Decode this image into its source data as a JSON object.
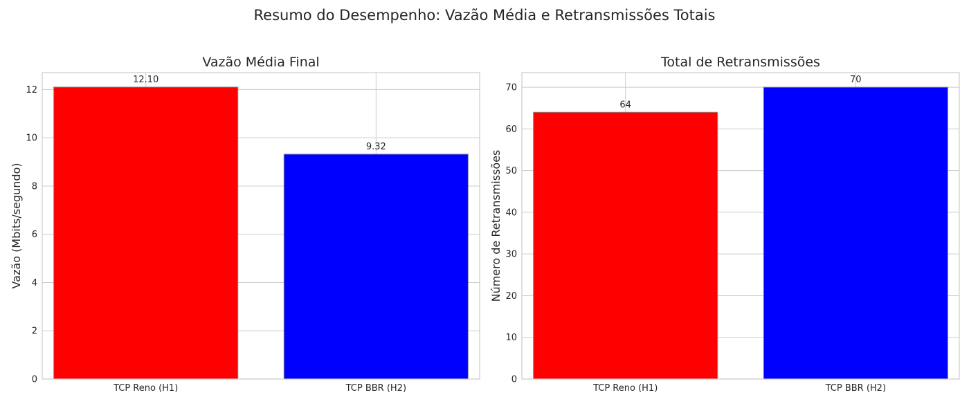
{
  "figure": {
    "title": "Resumo do Desempenho: Vazão Média e Retransmissões Totais"
  },
  "chart_data": [
    {
      "type": "bar",
      "title": "Vazão Média Final",
      "xlabel": "",
      "ylabel": "Vazão (Mbits/segundo)",
      "categories": [
        "TCP Reno (H1)",
        "TCP BBR (H2)"
      ],
      "values": [
        12.1,
        9.32
      ],
      "value_labels": [
        "12.10",
        "9.32"
      ],
      "colors": [
        "#ff0000",
        "#0000ff"
      ],
      "ylim": [
        0,
        12.7
      ],
      "yticks": [
        0,
        2,
        4,
        6,
        8,
        10,
        12
      ],
      "grid": true
    },
    {
      "type": "bar",
      "title": "Total de Retransmissões",
      "xlabel": "",
      "ylabel": "Número de Retransmissões",
      "categories": [
        "TCP Reno (H1)",
        "TCP BBR (H2)"
      ],
      "values": [
        64,
        70
      ],
      "value_labels": [
        "64",
        "70"
      ],
      "colors": [
        "#ff0000",
        "#0000ff"
      ],
      "ylim": [
        0,
        73.5
      ],
      "yticks": [
        0,
        10,
        20,
        30,
        40,
        50,
        60,
        70
      ],
      "grid": true
    }
  ]
}
